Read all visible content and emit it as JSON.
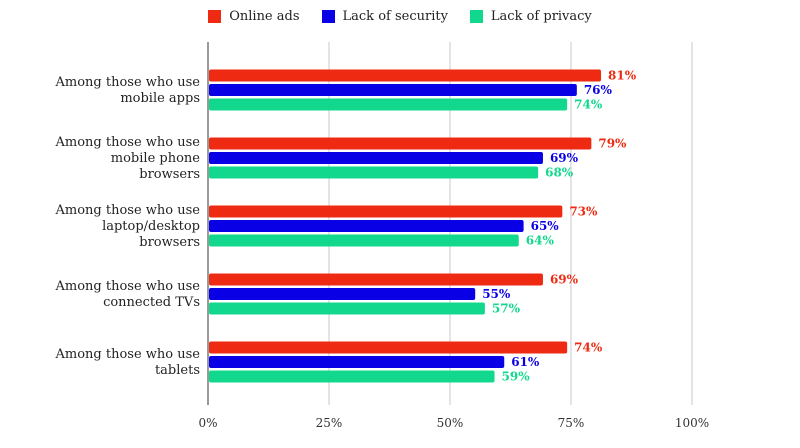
{
  "chart_data": {
    "type": "bar",
    "orientation": "horizontal",
    "categories": [
      [
        "Among those who use",
        "mobile apps"
      ],
      [
        "Among those who use",
        "mobile phone",
        "browsers"
      ],
      [
        "Among those who use",
        "laptop/desktop",
        "browsers"
      ],
      [
        "Among those who use",
        "connected TVs"
      ],
      [
        "Among those who use",
        "tablets"
      ]
    ],
    "series": [
      {
        "name": "Online ads",
        "color": "#ee2a12",
        "values": [
          81,
          79,
          73,
          69,
          74
        ],
        "labels": [
          "81%",
          "79%",
          "73%",
          "69%",
          "74%"
        ]
      },
      {
        "name": "Lack of security",
        "color": "#0a00e6",
        "values": [
          76,
          69,
          65,
          55,
          61
        ],
        "labels": [
          "76%",
          "69%",
          "65%",
          "55%",
          "61%"
        ]
      },
      {
        "name": "Lack of privacy",
        "color": "#11d88d",
        "values": [
          74,
          68,
          64,
          57,
          59
        ],
        "labels": [
          "74%",
          "68%",
          "64%",
          "57%",
          "59%"
        ]
      }
    ],
    "xlim": [
      0,
      100
    ],
    "xticks": [
      0,
      25,
      50,
      75,
      100
    ],
    "xtick_labels": [
      "0%",
      "25%",
      "50%",
      "75%",
      "100%"
    ],
    "grid": "vertical",
    "legend_position": "top-center"
  }
}
